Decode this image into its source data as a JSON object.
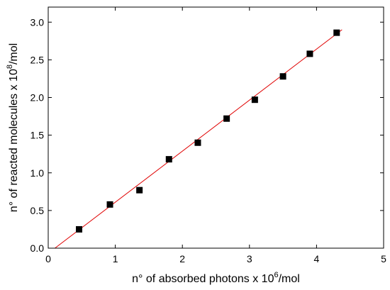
{
  "chart_data": {
    "type": "scatter",
    "title": "",
    "xlabel": {
      "prefix": "n° of absorbed photons x 10",
      "exp": "6",
      "suffix": "/mol"
    },
    "ylabel": {
      "prefix": "n° of reacted molecules x 10",
      "exp": "8",
      "suffix": "/mol"
    },
    "xlim": [
      0,
      5
    ],
    "ylim": [
      0,
      3.2
    ],
    "xticks": [
      0,
      1,
      2,
      3,
      4,
      5
    ],
    "xtick_labels": [
      "0",
      "1",
      "2",
      "3",
      "4",
      "5"
    ],
    "yticks": [
      0.0,
      0.5,
      1.0,
      1.5,
      2.0,
      2.5,
      3.0
    ],
    "ytick_labels": [
      "0.0",
      "0.5",
      "1.0",
      "1.5",
      "2.0",
      "2.5",
      "3.0"
    ],
    "grid": false,
    "legend": "none",
    "series": [
      {
        "marker": "square",
        "color": "#000000",
        "x": [
          0.46,
          0.92,
          1.36,
          1.8,
          2.23,
          2.66,
          3.08,
          3.5,
          3.9,
          4.3
        ],
        "y": [
          0.25,
          0.58,
          0.77,
          1.18,
          1.4,
          1.72,
          1.97,
          2.28,
          2.58,
          2.86
        ]
      }
    ],
    "fit_line": {
      "color": "#e00000",
      "x": [
        0.1,
        4.38
      ],
      "y": [
        0.0,
        2.9
      ]
    }
  }
}
